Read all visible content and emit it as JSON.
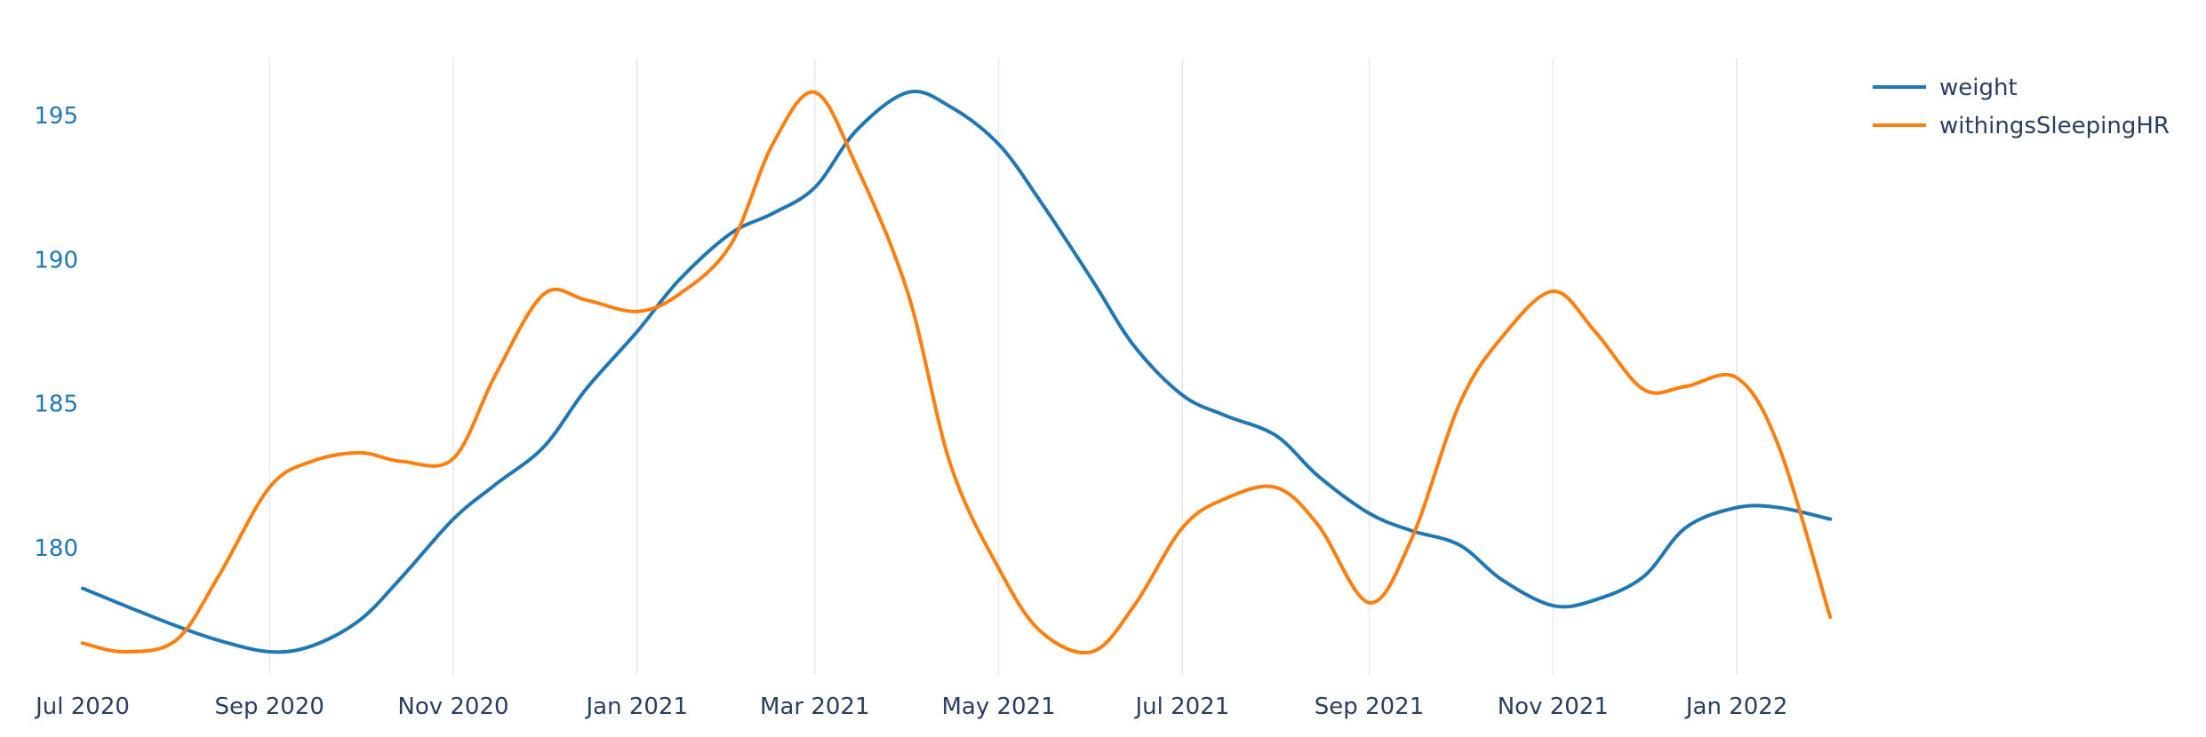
{
  "chart_data": {
    "type": "line",
    "title": "",
    "xlabel": "",
    "ylabel": "",
    "x_range": [
      "2020-07-01",
      "2022-02-15"
    ],
    "y_range": [
      175.6,
      197
    ],
    "y_ticks": [
      180,
      185,
      190,
      195
    ],
    "y_tick_color": "#1f77b4",
    "x_ticks": [
      {
        "date": "2020-07-01",
        "label": "Jul 2020"
      },
      {
        "date": "2020-09-01",
        "label": "Sep 2020"
      },
      {
        "date": "2020-11-01",
        "label": "Nov 2020"
      },
      {
        "date": "2021-01-01",
        "label": "Jan 2021"
      },
      {
        "date": "2021-03-01",
        "label": "Mar 2021"
      },
      {
        "date": "2021-05-01",
        "label": "May 2021"
      },
      {
        "date": "2021-07-01",
        "label": "Jul 2021"
      },
      {
        "date": "2021-09-01",
        "label": "Sep 2021"
      },
      {
        "date": "2021-11-01",
        "label": "Nov 2021"
      },
      {
        "date": "2022-01-01",
        "label": "Jan 2022"
      }
    ],
    "grid": {
      "vertical": true,
      "horizontal": false
    },
    "legend_position": "top-right",
    "series": [
      {
        "name": "weight",
        "color": "#1f77b4",
        "points": [
          [
            "2020-07-01",
            178.6
          ],
          [
            "2020-07-15",
            178.0
          ],
          [
            "2020-08-01",
            177.3
          ],
          [
            "2020-08-15",
            176.8
          ],
          [
            "2020-09-01",
            176.4
          ],
          [
            "2020-09-15",
            176.6
          ],
          [
            "2020-10-01",
            177.5
          ],
          [
            "2020-10-15",
            179.0
          ],
          [
            "2020-11-01",
            181.0
          ],
          [
            "2020-11-15",
            182.2
          ],
          [
            "2020-12-01",
            183.5
          ],
          [
            "2020-12-15",
            185.5
          ],
          [
            "2021-01-01",
            187.5
          ],
          [
            "2021-01-15",
            189.3
          ],
          [
            "2021-02-01",
            190.9
          ],
          [
            "2021-02-15",
            191.6
          ],
          [
            "2021-03-01",
            192.5
          ],
          [
            "2021-03-15",
            194.5
          ],
          [
            "2021-04-01",
            195.8
          ],
          [
            "2021-04-15",
            195.3
          ],
          [
            "2021-05-01",
            194.0
          ],
          [
            "2021-05-15",
            192.0
          ],
          [
            "2021-06-01",
            189.3
          ],
          [
            "2021-06-15",
            187.0
          ],
          [
            "2021-07-01",
            185.3
          ],
          [
            "2021-07-15",
            184.6
          ],
          [
            "2021-08-01",
            183.9
          ],
          [
            "2021-08-15",
            182.5
          ],
          [
            "2021-09-01",
            181.2
          ],
          [
            "2021-09-15",
            180.6
          ],
          [
            "2021-10-01",
            180.1
          ],
          [
            "2021-10-15",
            178.9
          ],
          [
            "2021-11-01",
            178.0
          ],
          [
            "2021-11-15",
            178.2
          ],
          [
            "2021-12-01",
            179.0
          ],
          [
            "2021-12-15",
            180.7
          ],
          [
            "2022-01-01",
            181.4
          ],
          [
            "2022-01-15",
            181.4
          ],
          [
            "2022-02-01",
            181.0
          ]
        ]
      },
      {
        "name": "withingsSleepingHR",
        "color": "#ff7f0e",
        "points": [
          [
            "2020-07-01",
            176.7
          ],
          [
            "2020-07-15",
            176.4
          ],
          [
            "2020-08-01",
            176.8
          ],
          [
            "2020-08-15",
            179.0
          ],
          [
            "2020-09-01",
            182.1
          ],
          [
            "2020-09-15",
            183.0
          ],
          [
            "2020-10-01",
            183.3
          ],
          [
            "2020-10-15",
            183.0
          ],
          [
            "2020-11-01",
            183.1
          ],
          [
            "2020-11-15",
            186.0
          ],
          [
            "2020-12-01",
            188.8
          ],
          [
            "2020-12-15",
            188.6
          ],
          [
            "2021-01-01",
            188.2
          ],
          [
            "2021-01-15",
            188.8
          ],
          [
            "2021-02-01",
            190.5
          ],
          [
            "2021-02-15",
            194.0
          ],
          [
            "2021-03-01",
            195.8
          ],
          [
            "2021-03-15",
            193.2
          ],
          [
            "2021-04-01",
            188.8
          ],
          [
            "2021-04-15",
            182.9
          ],
          [
            "2021-05-01",
            179.3
          ],
          [
            "2021-05-15",
            177.1
          ],
          [
            "2021-06-01",
            176.4
          ],
          [
            "2021-06-15",
            178.0
          ],
          [
            "2021-07-01",
            180.7
          ],
          [
            "2021-07-15",
            181.7
          ],
          [
            "2021-08-01",
            182.1
          ],
          [
            "2021-08-15",
            180.8
          ],
          [
            "2021-09-01",
            178.1
          ],
          [
            "2021-09-15",
            180.3
          ],
          [
            "2021-10-01",
            185.0
          ],
          [
            "2021-10-15",
            187.3
          ],
          [
            "2021-11-01",
            188.9
          ],
          [
            "2021-11-15",
            187.5
          ],
          [
            "2021-12-01",
            185.5
          ],
          [
            "2021-12-15",
            185.6
          ],
          [
            "2022-01-01",
            185.9
          ],
          [
            "2022-01-15",
            183.5
          ],
          [
            "2022-02-01",
            177.6
          ]
        ]
      }
    ]
  }
}
